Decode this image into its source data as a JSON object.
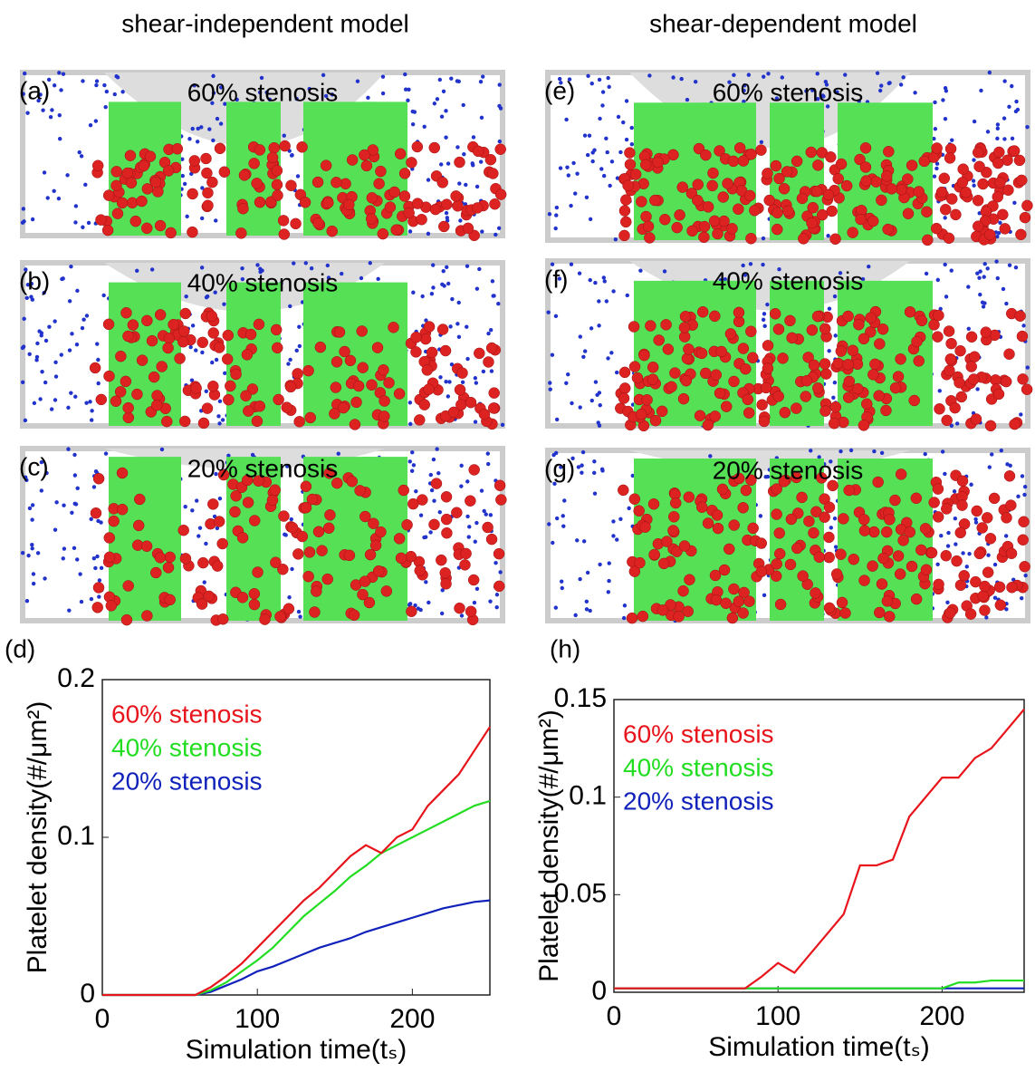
{
  "headers": [
    "shear-independent model",
    "shear-dependent model"
  ],
  "panels": [
    {
      "label": "(a)",
      "title": "60% stenosis"
    },
    {
      "label": "(b)",
      "title": "40% stenosis"
    },
    {
      "label": "(c)",
      "title": "20% stenosis"
    },
    {
      "label": "(e)",
      "title": "60% stenosis"
    },
    {
      "label": "(f)",
      "title": "40% stenosis"
    },
    {
      "label": "(g)",
      "title": "20% stenosis"
    }
  ],
  "chart_data": [
    {
      "type": "line",
      "panel_label": "(d)",
      "xlabel": "Simulation time(tₛ)",
      "ylabel": "Platelet density(#/μm²)",
      "x": [
        0,
        10,
        20,
        30,
        40,
        50,
        60,
        70,
        80,
        90,
        100,
        110,
        120,
        130,
        140,
        150,
        160,
        170,
        180,
        190,
        200,
        210,
        220,
        230,
        240,
        250
      ],
      "xlim": [
        0,
        250
      ],
      "ylim": [
        0,
        0.2
      ],
      "xticks": [
        0,
        100,
        200
      ],
      "yticks": [
        0,
        0.1,
        0.2
      ],
      "series": [
        {
          "name": "60% stenosis",
          "color": "#e8141b",
          "values": [
            0,
            0,
            0,
            0,
            0,
            0,
            0,
            0.005,
            0.012,
            0.02,
            0.03,
            0.04,
            0.05,
            0.06,
            0.068,
            0.078,
            0.088,
            0.095,
            0.09,
            0.1,
            0.105,
            0.12,
            0.13,
            0.14,
            0.155,
            0.17
          ]
        },
        {
          "name": "40% stenosis",
          "color": "#22dd22",
          "values": [
            0,
            0,
            0,
            0,
            0,
            0,
            0,
            0.003,
            0.008,
            0.015,
            0.022,
            0.03,
            0.04,
            0.05,
            0.058,
            0.066,
            0.075,
            0.082,
            0.09,
            0.095,
            0.1,
            0.105,
            0.11,
            0.115,
            0.12,
            0.123
          ]
        },
        {
          "name": "20% stenosis",
          "color": "#1122bb",
          "values": [
            0,
            0,
            0,
            0,
            0,
            0,
            0,
            0.002,
            0.006,
            0.01,
            0.015,
            0.018,
            0.022,
            0.026,
            0.03,
            0.033,
            0.036,
            0.04,
            0.043,
            0.046,
            0.049,
            0.052,
            0.055,
            0.057,
            0.059,
            0.06
          ]
        }
      ]
    },
    {
      "type": "line",
      "panel_label": "(h)",
      "xlabel": "Simulation time(tₛ)",
      "ylabel": "Platelet density(#/μm²)",
      "x": [
        0,
        10,
        20,
        30,
        40,
        50,
        60,
        70,
        80,
        90,
        100,
        110,
        120,
        130,
        140,
        150,
        160,
        170,
        180,
        190,
        200,
        210,
        220,
        230,
        240,
        250
      ],
      "xlim": [
        0,
        250
      ],
      "ylim": [
        0,
        0.15
      ],
      "xticks": [
        0,
        100,
        200
      ],
      "yticks": [
        0,
        0.05,
        0.1,
        0.15
      ],
      "series": [
        {
          "name": "60% stenosis",
          "color": "#e8141b",
          "values": [
            0.002,
            0.002,
            0.002,
            0.002,
            0.002,
            0.002,
            0.002,
            0.002,
            0.002,
            0.008,
            0.015,
            0.01,
            0.02,
            0.03,
            0.04,
            0.065,
            0.065,
            0.068,
            0.09,
            0.1,
            0.11,
            0.11,
            0.12,
            0.125,
            0.135,
            0.145
          ]
        },
        {
          "name": "40% stenosis",
          "color": "#22dd22",
          "values": [
            0.002,
            0.002,
            0.002,
            0.002,
            0.002,
            0.002,
            0.002,
            0.002,
            0.002,
            0.002,
            0.002,
            0.002,
            0.002,
            0.002,
            0.002,
            0.002,
            0.002,
            0.002,
            0.002,
            0.002,
            0.002,
            0.005,
            0.005,
            0.006,
            0.006,
            0.006
          ]
        },
        {
          "name": "20% stenosis",
          "color": "#1122bb",
          "values": [
            0.002,
            0.002,
            0.002,
            0.002,
            0.002,
            0.002,
            0.002,
            0.002,
            0.002,
            0.002,
            0.002,
            0.002,
            0.002,
            0.002,
            0.002,
            0.002,
            0.002,
            0.002,
            0.002,
            0.002,
            0.002,
            0.002,
            0.002,
            0.002,
            0.002,
            0.002
          ]
        }
      ]
    }
  ]
}
